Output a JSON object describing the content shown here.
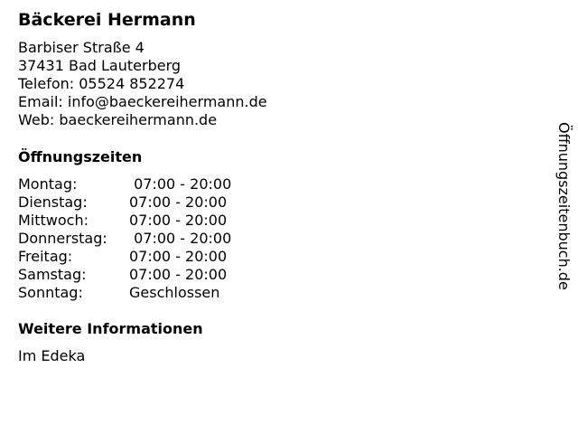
{
  "business": {
    "name": "Bäckerei Hermann",
    "street": "Barbiser Straße 4",
    "city": "37431 Bad Lauterberg",
    "phone": "Telefon: 05524 852274",
    "email": "Email: info@baeckereihermann.de",
    "web": "Web: baeckereihermann.de"
  },
  "hours": {
    "heading": "Öffnungszeiten",
    "rows": [
      {
        "day": "Montag:",
        "time": " 07:00 - 20:00"
      },
      {
        "day": "Dienstag:",
        "time": "07:00 - 20:00"
      },
      {
        "day": "Mittwoch:",
        "time": "07:00 - 20:00"
      },
      {
        "day": "Donnerstag:",
        "time": " 07:00 - 20:00"
      },
      {
        "day": "Freitag:",
        "time": "07:00 - 20:00"
      },
      {
        "day": "Samstag:",
        "time": "07:00 - 20:00"
      },
      {
        "day": "Sonntag:",
        "time": "Geschlossen"
      }
    ]
  },
  "info": {
    "heading": "Weitere Informationen",
    "text": "Im Edeka"
  },
  "watermark": "Öffnungszeitenbuch.de"
}
